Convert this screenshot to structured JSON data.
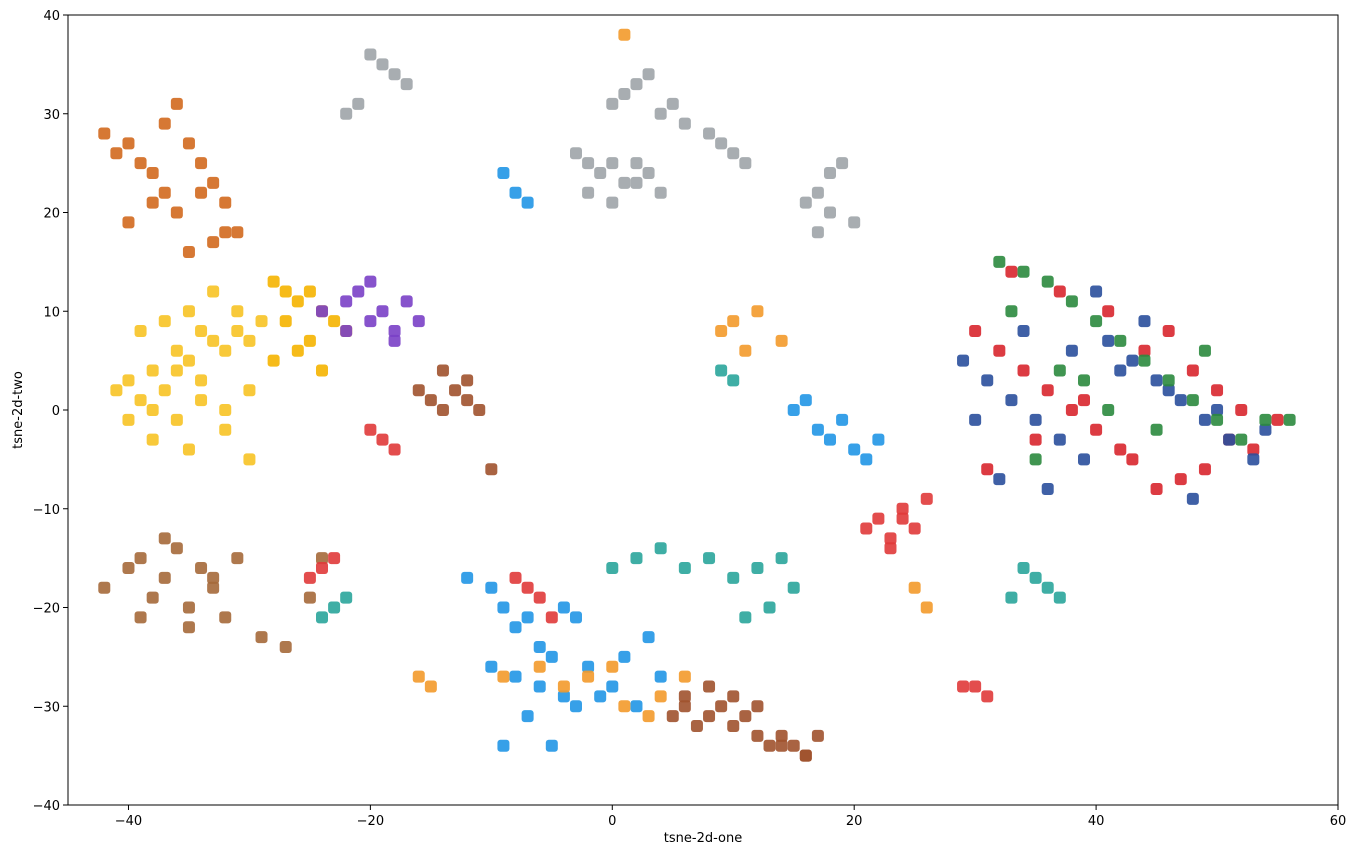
{
  "chart_data": {
    "type": "scatter",
    "xlabel": "tsne-2d-one",
    "ylabel": "tsne-2d-two",
    "xlim": [
      -45,
      60
    ],
    "ylim": [
      -40,
      40
    ],
    "xticks": [
      {
        "value": -40,
        "label": "−40"
      },
      {
        "value": -20,
        "label": "−20"
      },
      0,
      20,
      40,
      60
    ],
    "yticks": [
      {
        "value": -40,
        "label": "−40"
      },
      {
        "value": -30,
        "label": "−30"
      },
      {
        "value": -20,
        "label": "−20"
      },
      {
        "value": -10,
        "label": "−10"
      },
      0,
      10,
      20,
      30,
      40
    ],
    "series": [
      {
        "color": "#f7c325",
        "x": [
          -41,
          -40,
          -39,
          -38,
          -37,
          -36,
          -35,
          -34,
          -33,
          -32,
          -31,
          -30,
          -40,
          -38,
          -36,
          -34,
          -32,
          -30,
          -39,
          -37,
          -35,
          -33,
          -31,
          -29,
          -38,
          -35,
          -32,
          -36,
          -34,
          -30
        ],
        "values": [
          2,
          3,
          1,
          4,
          2,
          6,
          5,
          8,
          7,
          6,
          8,
          7,
          -1,
          0,
          -1,
          1,
          0,
          2,
          8,
          9,
          10,
          12,
          10,
          9,
          -3,
          -4,
          -2,
          4,
          3,
          -5
        ]
      },
      {
        "color": "#f5b400",
        "x": [
          -28,
          -27,
          -26,
          -25,
          -24,
          -23,
          -22,
          -28,
          -26,
          -24,
          -27,
          -25
        ],
        "values": [
          13,
          12,
          11,
          12,
          10,
          9,
          8,
          5,
          6,
          4,
          9,
          7
        ]
      },
      {
        "color": "#d2691e",
        "x": [
          -42,
          -41,
          -40,
          -39,
          -38,
          -37,
          -36,
          -35,
          -34,
          -33,
          -32,
          -31,
          -40,
          -38,
          -36,
          -34,
          -32,
          -33,
          -35,
          -37
        ],
        "values": [
          28,
          26,
          27,
          25,
          24,
          29,
          31,
          27,
          25,
          23,
          21,
          18,
          19,
          21,
          20,
          22,
          18,
          17,
          16,
          22
        ]
      },
      {
        "color": "#a5693a",
        "x": [
          -42,
          -40,
          -39,
          -38,
          -37,
          -36,
          -35,
          -34,
          -33,
          -32,
          -31,
          -39,
          -37,
          -35,
          -33,
          -29,
          -27,
          -25,
          -24
        ],
        "values": [
          -18,
          -16,
          -15,
          -19,
          -17,
          -14,
          -20,
          -16,
          -18,
          -21,
          -15,
          -21,
          -13,
          -22,
          -17,
          -23,
          -24,
          -19,
          -15
        ]
      },
      {
        "color": "#7a40c6",
        "x": [
          -24,
          -22,
          -21,
          -20,
          -19,
          -18,
          -17,
          -20,
          -22,
          -18,
          -16
        ],
        "values": [
          10,
          11,
          12,
          9,
          10,
          8,
          11,
          13,
          8,
          7,
          9
        ]
      },
      {
        "color": "#a0522d",
        "x": [
          -16,
          -15,
          -14,
          -13,
          -12,
          -11,
          -14,
          -12,
          -10,
          5,
          6,
          7,
          8,
          9,
          10,
          11,
          12,
          13,
          14,
          15,
          16,
          17,
          6,
          8,
          10,
          12,
          14,
          16
        ],
        "values": [
          2,
          1,
          0,
          2,
          1,
          0,
          4,
          3,
          -6,
          -31,
          -30,
          -32,
          -31,
          -30,
          -32,
          -31,
          -33,
          -34,
          -33,
          -34,
          -35,
          -33,
          -29,
          -28,
          -29,
          -30,
          -34,
          -35
        ]
      },
      {
        "color": "#9ea4a8",
        "x": [
          -20,
          -19,
          -18,
          -17,
          -22,
          -21,
          -3,
          -2,
          -1,
          0,
          1,
          2,
          3,
          4,
          -2,
          0,
          2,
          0,
          1,
          2,
          3,
          4,
          5,
          6,
          8,
          9,
          10,
          11,
          16,
          17,
          18,
          19,
          20,
          17,
          18
        ],
        "values": [
          36,
          35,
          34,
          33,
          30,
          31,
          26,
          25,
          24,
          25,
          23,
          25,
          24,
          22,
          22,
          21,
          23,
          31,
          32,
          33,
          34,
          30,
          31,
          29,
          28,
          27,
          26,
          25,
          21,
          22,
          24,
          25,
          19,
          18,
          20
        ]
      },
      {
        "color": "#2196e6",
        "x": [
          -12,
          -10,
          -9,
          -8,
          -7,
          -6,
          -5,
          -4,
          -3,
          -10,
          -8,
          -6,
          -4,
          -2,
          0,
          2,
          4,
          -7,
          -5,
          -3,
          -1,
          1,
          3,
          -9,
          15,
          16,
          17,
          18,
          19,
          20,
          21,
          22,
          -9,
          -8,
          -7
        ],
        "values": [
          -17,
          -18,
          -20,
          -22,
          -21,
          -24,
          -25,
          -20,
          -21,
          -26,
          -27,
          -28,
          -29,
          -26,
          -28,
          -30,
          -27,
          -31,
          -34,
          -30,
          -29,
          -25,
          -23,
          -34,
          0,
          1,
          -2,
          -3,
          -1,
          -4,
          -5,
          -3,
          24,
          22,
          21
        ]
      },
      {
        "color": "#f39a2b",
        "x": [
          -9,
          -6,
          -4,
          -2,
          0,
          1,
          3,
          4,
          6,
          9,
          10,
          11,
          12,
          14,
          25,
          26,
          -15,
          -16,
          1
        ],
        "values": [
          -27,
          -26,
          -28,
          -27,
          -26,
          -30,
          -31,
          -29,
          -27,
          8,
          9,
          6,
          10,
          7,
          -18,
          -20,
          -28,
          -27,
          38
        ]
      },
      {
        "color": "#e03a3a",
        "x": [
          21,
          22,
          23,
          24,
          25,
          26,
          23,
          24,
          -20,
          -19,
          -18,
          -8,
          -7,
          -6,
          -5,
          -25,
          -24,
          -23,
          29,
          30,
          31
        ],
        "values": [
          -12,
          -11,
          -13,
          -10,
          -12,
          -9,
          -14,
          -11,
          -2,
          -3,
          -4,
          -17,
          -18,
          -19,
          -21,
          -17,
          -16,
          -15,
          -28,
          -28,
          -29
        ]
      },
      {
        "color": "#2aa59b",
        "x": [
          0,
          2,
          4,
          6,
          8,
          10,
          12,
          14,
          11,
          13,
          15,
          34,
          35,
          36,
          37,
          33,
          -23,
          -24,
          -22,
          9,
          10
        ],
        "values": [
          -16,
          -15,
          -14,
          -16,
          -15,
          -17,
          -16,
          -15,
          -21,
          -20,
          -18,
          -16,
          -17,
          -18,
          -19,
          -19,
          -20,
          -21,
          -19,
          4,
          3
        ]
      },
      {
        "color": "#d8262e",
        "x": [
          30,
          32,
          34,
          36,
          38,
          40,
          42,
          44,
          46,
          48,
          50,
          52,
          31,
          35,
          39,
          43,
          47,
          51,
          55,
          33,
          37,
          41,
          45,
          49,
          53
        ],
        "values": [
          8,
          6,
          4,
          2,
          0,
          -2,
          -4,
          6,
          8,
          4,
          2,
          0,
          -6,
          -3,
          1,
          -5,
          -7,
          -3,
          -1,
          14,
          12,
          10,
          -8,
          -6,
          -4
        ]
      },
      {
        "color": "#2a4f9c",
        "x": [
          29,
          31,
          33,
          35,
          37,
          39,
          41,
          43,
          45,
          47,
          49,
          51,
          53,
          30,
          34,
          38,
          42,
          46,
          50,
          54,
          32,
          36,
          40,
          44,
          48
        ],
        "values": [
          5,
          3,
          1,
          -1,
          -3,
          -5,
          7,
          5,
          3,
          1,
          -1,
          -3,
          -5,
          -1,
          8,
          6,
          4,
          2,
          0,
          -2,
          -7,
          -8,
          12,
          9,
          -9
        ]
      },
      {
        "color": "#2b8a3e",
        "x": [
          32,
          34,
          36,
          38,
          40,
          42,
          44,
          46,
          48,
          50,
          52,
          54,
          56,
          33,
          37,
          41,
          45,
          49,
          35,
          39
        ],
        "values": [
          15,
          14,
          13,
          11,
          9,
          7,
          5,
          3,
          1,
          -1,
          -3,
          -1,
          -1,
          10,
          4,
          0,
          -2,
          6,
          -5,
          3
        ]
      }
    ]
  }
}
